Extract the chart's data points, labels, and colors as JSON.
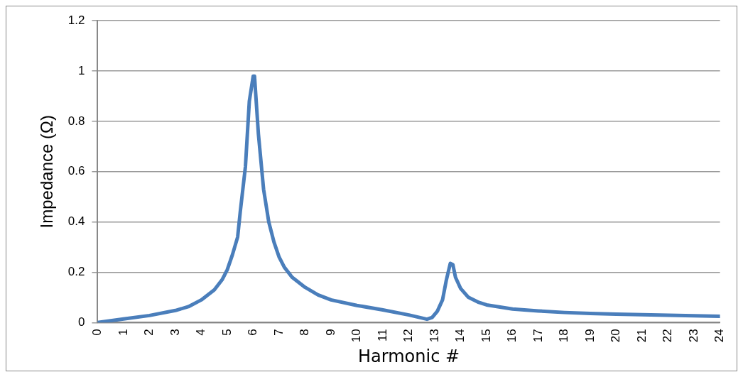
{
  "chart_data": {
    "type": "line",
    "xlabel": "Harmonic #",
    "ylabel": "Impedance (Ω)",
    "xlim": [
      0,
      24
    ],
    "xticks": [
      0,
      1,
      2,
      3,
      4,
      5,
      6,
      7,
      8,
      9,
      10,
      11,
      12,
      13,
      14,
      15,
      16,
      17,
      18,
      19,
      20,
      21,
      22,
      23,
      24
    ],
    "ylim": [
      0,
      1.2
    ],
    "yticks": [
      0,
      0.2,
      0.4,
      0.6,
      0.8,
      1,
      1.2
    ],
    "grid": "y",
    "legend": false,
    "marker": "none",
    "line_style": "solid",
    "x": [
      0,
      0.25,
      1,
      2,
      3,
      3.5,
      4,
      4.5,
      4.8,
      5,
      5.2,
      5.4,
      5.5,
      5.7,
      5.85,
      6,
      6.05,
      6.2,
      6.4,
      6.6,
      6.8,
      7,
      7.2,
      7.5,
      8,
      8.5,
      9,
      10,
      11,
      12,
      12.5,
      12.7,
      12.9,
      13.1,
      13.3,
      13.45,
      13.6,
      13.7,
      13.8,
      14,
      14.3,
      14.7,
      15,
      16,
      17,
      18,
      19,
      20,
      21,
      22,
      23,
      24
    ],
    "series": [
      {
        "color": "#4a7ebb",
        "values": [
          0,
          0.004,
          0.014,
          0.028,
          0.048,
          0.063,
          0.09,
          0.13,
          0.17,
          0.21,
          0.27,
          0.34,
          0.44,
          0.62,
          0.88,
          0.98,
          0.98,
          0.75,
          0.53,
          0.4,
          0.32,
          0.26,
          0.22,
          0.18,
          0.14,
          0.11,
          0.09,
          0.068,
          0.05,
          0.03,
          0.018,
          0.013,
          0.02,
          0.045,
          0.09,
          0.17,
          0.235,
          0.23,
          0.18,
          0.135,
          0.1,
          0.08,
          0.07,
          0.054,
          0.046,
          0.04,
          0.036,
          0.033,
          0.031,
          0.029,
          0.027,
          0.025
        ]
      }
    ]
  }
}
